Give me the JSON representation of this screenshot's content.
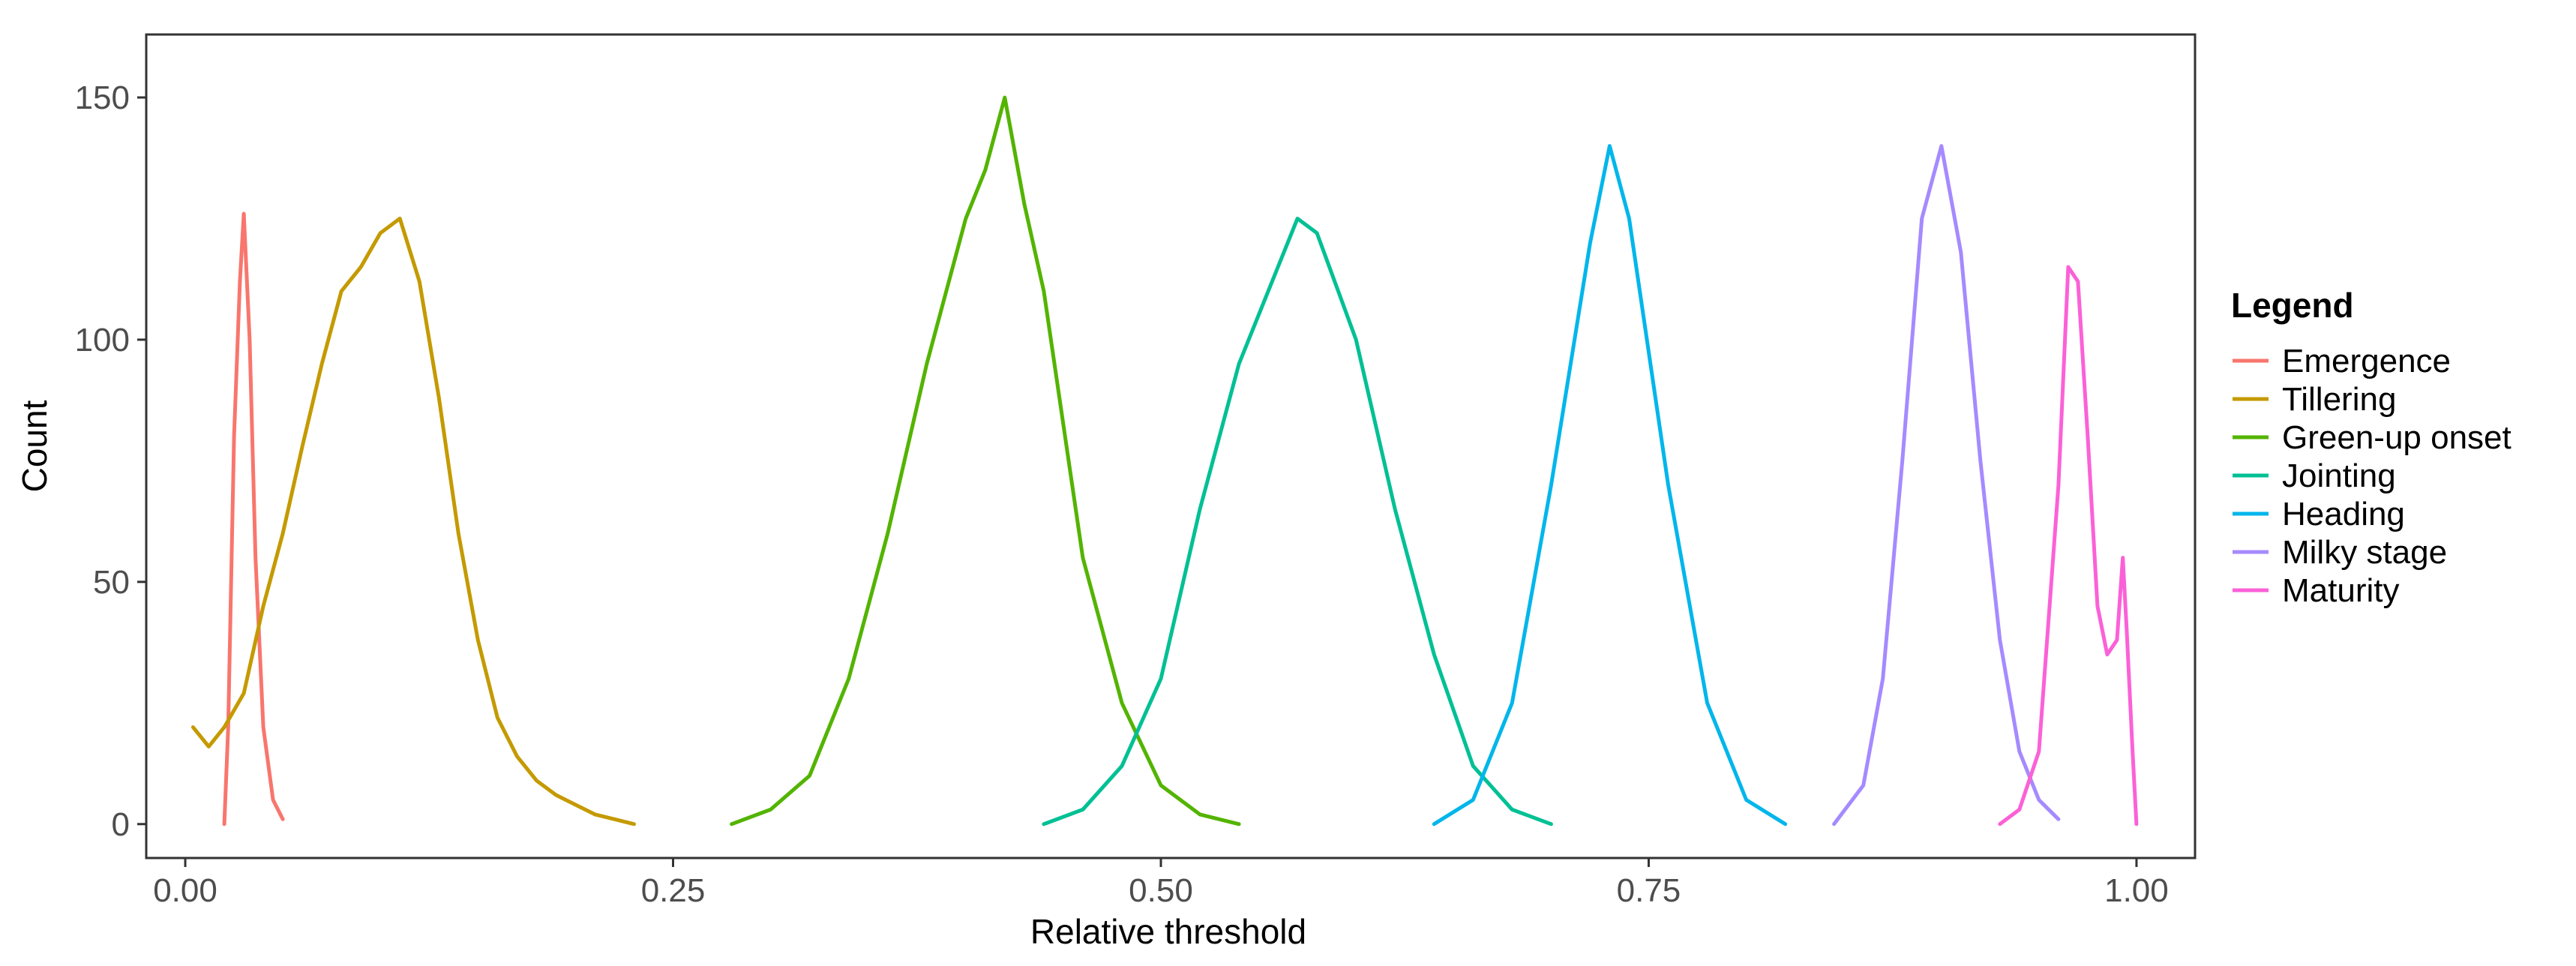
{
  "chart_data": {
    "type": "line",
    "title": "",
    "xlabel": "Relative threshold",
    "ylabel": "Count",
    "xlim": [
      -0.02,
      1.03
    ],
    "ylim": [
      -7,
      163
    ],
    "xticks": [
      0,
      0.25,
      0.5,
      0.75,
      1
    ],
    "xtick_labels": [
      "0.00",
      "0.25",
      "0.50",
      "0.75",
      "1.00"
    ],
    "yticks": [
      0,
      50,
      100,
      150
    ],
    "ytick_labels": [
      "0",
      "50",
      "100",
      "150"
    ],
    "grid": false,
    "legend": {
      "title": "Legend",
      "placement": "right"
    },
    "series": [
      {
        "name": "Emergence",
        "color": "#F8766D",
        "x": [
          0.02,
          0.022,
          0.025,
          0.028,
          0.03,
          0.033,
          0.036,
          0.04,
          0.045,
          0.05
        ],
        "y": [
          0,
          20,
          80,
          112,
          126,
          100,
          55,
          20,
          5,
          1
        ]
      },
      {
        "name": "Tillering",
        "color": "#C49A00",
        "x": [
          0.004,
          0.012,
          0.02,
          0.03,
          0.04,
          0.05,
          0.06,
          0.07,
          0.08,
          0.09,
          0.1,
          0.11,
          0.12,
          0.13,
          0.14,
          0.15,
          0.16,
          0.17,
          0.18,
          0.19,
          0.2,
          0.21,
          0.22,
          0.23
        ],
        "y": [
          20,
          16,
          20,
          27,
          45,
          60,
          78,
          95,
          110,
          115,
          122,
          125,
          112,
          88,
          60,
          38,
          22,
          14,
          9,
          6,
          4,
          2,
          1,
          0
        ]
      },
      {
        "name": "Green-up onset",
        "color": "#53B400",
        "x": [
          0.28,
          0.3,
          0.32,
          0.34,
          0.36,
          0.38,
          0.4,
          0.41,
          0.42,
          0.43,
          0.44,
          0.46,
          0.48,
          0.5,
          0.52,
          0.54
        ],
        "y": [
          0,
          3,
          10,
          30,
          60,
          95,
          125,
          135,
          150,
          128,
          110,
          55,
          25,
          8,
          2,
          0
        ]
      },
      {
        "name": "Jointing",
        "color": "#00C094",
        "x": [
          0.44,
          0.46,
          0.48,
          0.5,
          0.52,
          0.54,
          0.56,
          0.57,
          0.58,
          0.6,
          0.62,
          0.64,
          0.66,
          0.68,
          0.7
        ],
        "y": [
          0,
          3,
          12,
          30,
          65,
          95,
          115,
          125,
          122,
          100,
          65,
          35,
          12,
          3,
          0
        ]
      },
      {
        "name": "Heading",
        "color": "#00B6EB",
        "x": [
          0.64,
          0.66,
          0.68,
          0.7,
          0.72,
          0.73,
          0.74,
          0.76,
          0.78,
          0.8,
          0.82
        ],
        "y": [
          0,
          5,
          25,
          70,
          120,
          140,
          125,
          70,
          25,
          5,
          0
        ]
      },
      {
        "name": "Milky stage",
        "color": "#A58AFF",
        "x": [
          0.845,
          0.86,
          0.87,
          0.88,
          0.89,
          0.9,
          0.91,
          0.92,
          0.93,
          0.94,
          0.95,
          0.96
        ],
        "y": [
          0,
          8,
          30,
          75,
          125,
          140,
          118,
          75,
          38,
          15,
          5,
          1
        ]
      },
      {
        "name": "Maturity",
        "color": "#FB61D7",
        "x": [
          0.93,
          0.94,
          0.95,
          0.96,
          0.965,
          0.97,
          0.975,
          0.98,
          0.985,
          0.99,
          0.993,
          0.995,
          0.998,
          1.0
        ],
        "y": [
          0,
          3,
          15,
          70,
          115,
          112,
          80,
          45,
          35,
          38,
          55,
          40,
          15,
          0
        ]
      }
    ]
  }
}
